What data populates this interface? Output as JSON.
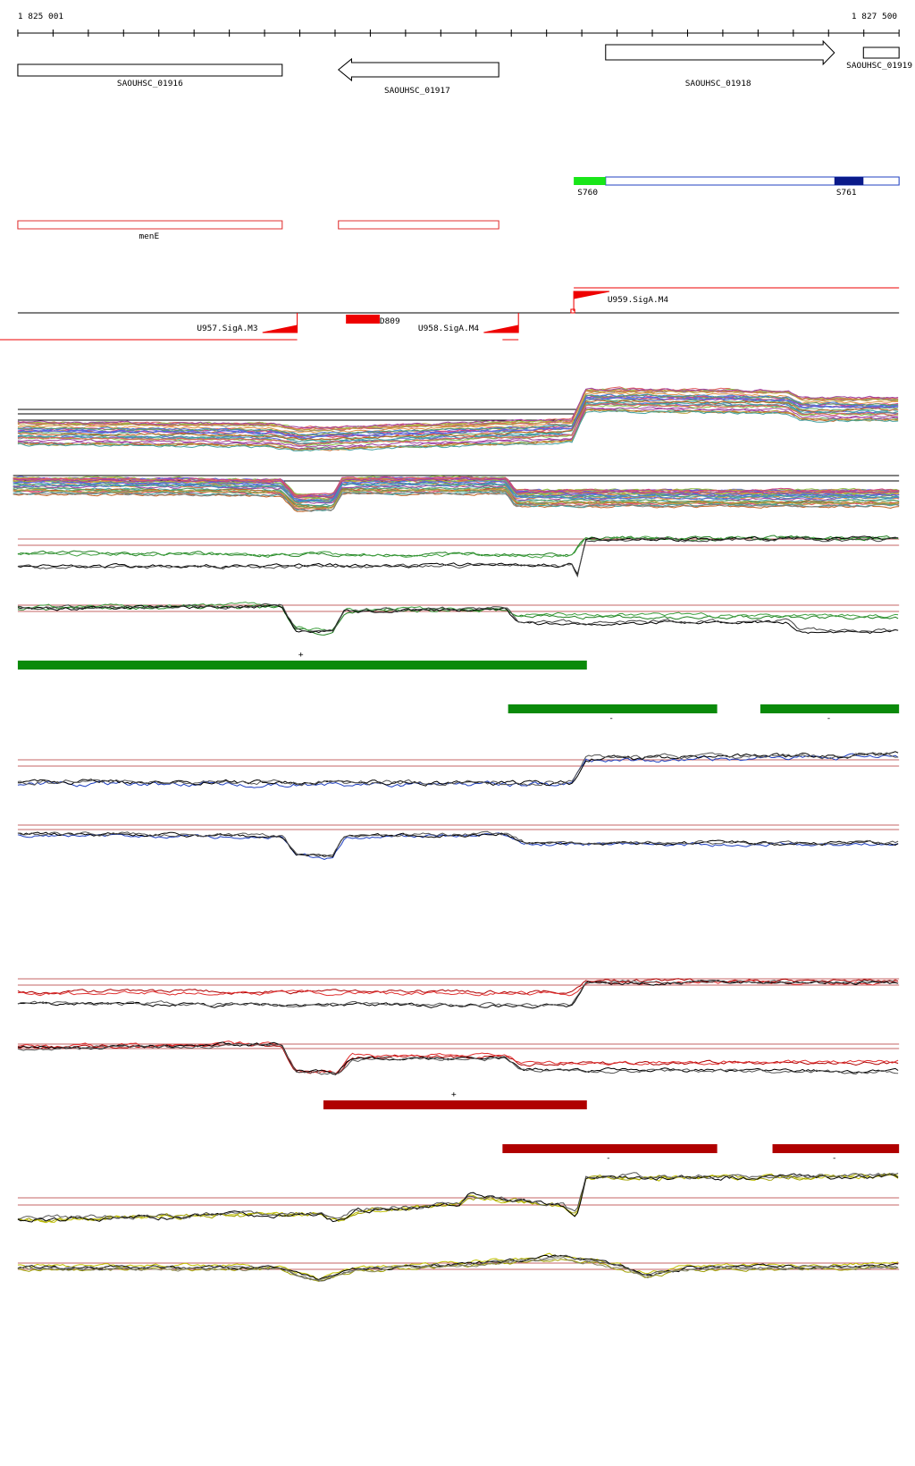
{
  "ruler": {
    "start": "1 825 001",
    "end": "1 827 500"
  },
  "genes": [
    "SAOUHSC_01916",
    "SAOUHSC_01917",
    "SAOUHSC_01918",
    "SAOUHSC_01919"
  ],
  "features": [
    "S760",
    "S761"
  ],
  "annotations": [
    "menE"
  ],
  "promoters": [
    "U959.SigA.M4",
    "U957.SigA.M3",
    "D809",
    "U958.SigA.M4"
  ],
  "strand_labels": [
    "+",
    "-",
    "-",
    "+",
    "-",
    "-"
  ]
}
